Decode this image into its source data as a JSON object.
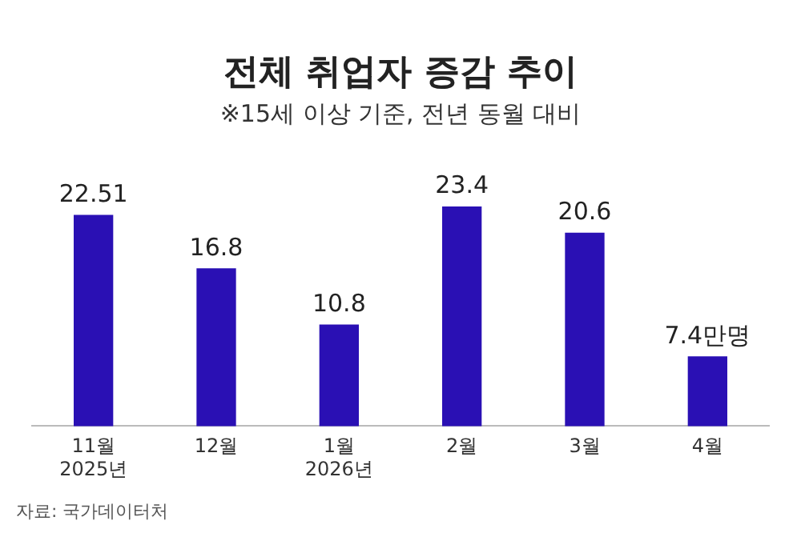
{
  "chart_data": {
    "type": "bar",
    "title": "전체 취업자 증감 추이",
    "subtitle": "※15세 이상 기준, 전년 동월 대비",
    "categories": [
      "11월\n2025년",
      "12월",
      "1월\n2026년",
      "2월",
      "3월",
      "4월"
    ],
    "values": [
      22.51,
      16.8,
      10.8,
      23.4,
      20.6,
      7.4
    ],
    "value_labels": [
      "22.51",
      "16.8",
      "10.8",
      "23.4",
      "20.6",
      "7.4만명"
    ],
    "color": "#2a10b4",
    "grid": false,
    "legend": false,
    "tick_labels": "x",
    "annotations": [
      "자료: 국가데이터처"
    ]
  }
}
